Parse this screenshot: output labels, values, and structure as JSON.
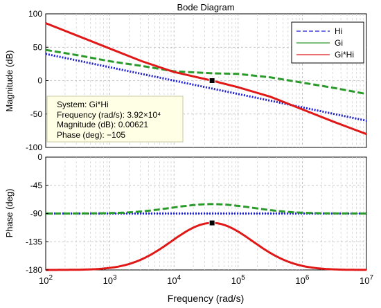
{
  "chart_data": [
    {
      "type": "line",
      "title": "Bode Diagram",
      "ylabel": "Magnitude (dB)",
      "xscale": "log",
      "xlim": [
        100,
        10000000
      ],
      "ylim": [
        -100,
        100
      ],
      "yticks": [
        -100,
        -50,
        0,
        50,
        100
      ],
      "grid": true,
      "legend": {
        "placement": "top-right",
        "entries": [
          "Hi",
          "Gi",
          "Gi*Hi"
        ]
      },
      "series": [
        {
          "name": "Hi",
          "color": "#1f1fd6",
          "style": "dotted",
          "x": [
            100,
            1000,
            10000,
            100000,
            1000000,
            10000000
          ],
          "y": [
            40,
            20,
            0,
            -20,
            -40,
            -60
          ]
        },
        {
          "name": "Gi",
          "color": "#2a9a2a",
          "style": "dashed",
          "x": [
            100,
            316,
            1000,
            3162,
            10000,
            39200,
            100000,
            316228,
            1000000,
            3162278,
            10000000
          ],
          "y": [
            46,
            38,
            29,
            22,
            14,
            11,
            10,
            5,
            -3,
            -11,
            -20
          ]
        },
        {
          "name": "Gi*Hi",
          "color": "#e01818",
          "style": "solid",
          "x": [
            100,
            316,
            1000,
            3162,
            10000,
            39200,
            100000,
            316228,
            1000000,
            3162278,
            10000000
          ],
          "y": [
            86,
            67,
            48,
            29,
            13,
            0,
            -10,
            -24,
            -43,
            -62,
            -80
          ]
        }
      ],
      "marker": {
        "x": 39200,
        "y": 0.00621
      },
      "datatip": {
        "system": "System: Gi*Hi",
        "frequency": "Frequency (rad/s): 3.92×10⁴",
        "magnitude": "Magnitude (dB): 0.00621",
        "phase": "Phase (deg): −105"
      }
    },
    {
      "type": "line",
      "ylabel": "Phase (deg)",
      "xlabel": "Frequency  (rad/s)",
      "xscale": "log",
      "xlim": [
        100,
        10000000
      ],
      "ylim": [
        -180,
        0
      ],
      "yticks": [
        -180,
        -135,
        -90,
        -45,
        0
      ],
      "grid": true,
      "series": [
        {
          "name": "Hi",
          "color": "#1f1fd6",
          "style": "dotted",
          "x": [
            100,
            10000000
          ],
          "y": [
            -90,
            -90
          ]
        },
        {
          "name": "Gi",
          "color": "#2a9a2a",
          "style": "dashed",
          "center": 39200,
          "peak": 15,
          "width_decades": 0.9,
          "base": -90
        },
        {
          "name": "Gi*Hi",
          "color": "#e01818",
          "style": "solid",
          "center": 39200,
          "peak": 75,
          "width_decades": 0.9,
          "base": -180
        }
      ],
      "marker": {
        "x": 39200,
        "y": -105
      }
    }
  ],
  "x_tick_labels": [
    {
      "base": "10",
      "exp": "2"
    },
    {
      "base": "10",
      "exp": "3"
    },
    {
      "base": "10",
      "exp": "4"
    },
    {
      "base": "10",
      "exp": "5"
    },
    {
      "base": "10",
      "exp": "6"
    },
    {
      "base": "10",
      "exp": "7"
    }
  ],
  "mag_tick_labels": [
    "-100",
    "-50",
    "0",
    "50",
    "100"
  ],
  "phase_tick_labels": [
    "-180",
    "-135",
    "-90",
    "-45",
    "0"
  ]
}
